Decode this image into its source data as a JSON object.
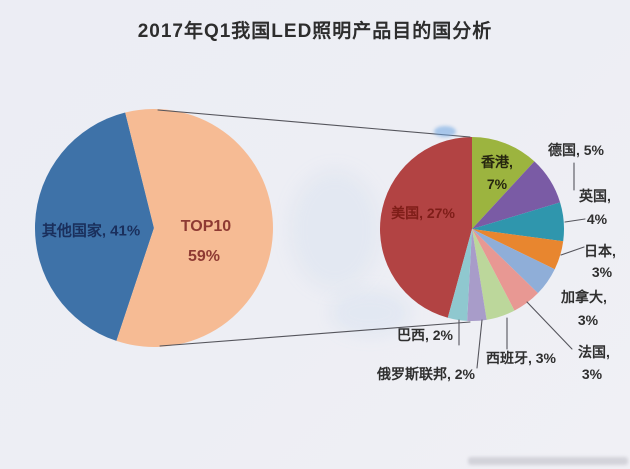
{
  "chart_data": {
    "type": "pie",
    "variant": "pie-of-pie",
    "title": "2017年Q1我国LED照明产品目的国分析",
    "unit": "%",
    "background_color": "#EDEEF4",
    "overview_pie": {
      "start_angle": 198.4,
      "slices": [
        {
          "label": "其他国家",
          "value": 41,
          "color": "#3E72A8",
          "label_color": "#1A2F5C"
        },
        {
          "label": "TOP10",
          "value": 59,
          "color": "#F6BB94",
          "label_color": "#8E3A33"
        }
      ]
    },
    "detail_pie": {
      "represents": "TOP10",
      "start_angle": 195.25,
      "slices": [
        {
          "label": "美国",
          "value": 27,
          "color": "#B24343",
          "label_color": "#7E1D18"
        },
        {
          "label": "香港",
          "value": 7,
          "color": "#9CB43F",
          "label_color": "#26260f"
        },
        {
          "label": "德国",
          "value": 5,
          "color": "#7A5BA5"
        },
        {
          "label": "英国",
          "value": 4,
          "color": "#2F96AD"
        },
        {
          "label": "日本",
          "value": 3,
          "color": "#E8862F"
        },
        {
          "label": "加拿大",
          "value": 3,
          "color": "#8FAED8"
        },
        {
          "label": "法国",
          "value": 3,
          "color": "#E89893"
        },
        {
          "label": "西班牙",
          "value": 3,
          "color": "#BCD79B"
        },
        {
          "label": "俄罗斯联邦",
          "value": 2,
          "color": "#A89CC9"
        },
        {
          "label": "巴西",
          "value": 2,
          "color": "#8FC8CF"
        }
      ]
    }
  }
}
